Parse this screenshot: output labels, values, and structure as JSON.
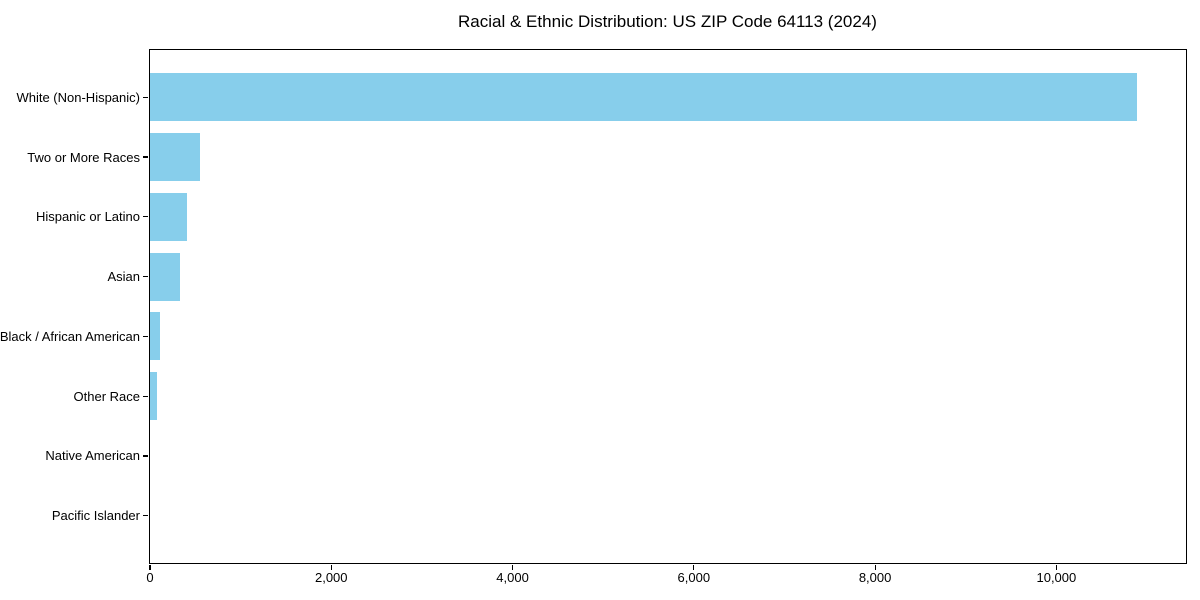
{
  "chart_data": {
    "type": "bar",
    "orientation": "horizontal",
    "title": "Racial & Ethnic Distribution: US ZIP Code 64113 (2024)",
    "categories": [
      "White (Non-Hispanic)",
      "Two or More Races",
      "Hispanic or Latino",
      "Asian",
      "Black / African American",
      "Other Race",
      "Native American",
      "Pacific Islander"
    ],
    "values": [
      10885,
      550,
      405,
      330,
      105,
      75,
      0,
      0
    ],
    "xlabel": "",
    "ylabel": "",
    "xlim": [
      0,
      11430
    ],
    "xticks": [
      0,
      2000,
      4000,
      6000,
      8000,
      10000
    ],
    "xtick_labels": [
      "0",
      "2,000",
      "4,000",
      "6,000",
      "8,000",
      "10,000"
    ],
    "grid": false,
    "legend": null,
    "bar_color": "#87CEEB",
    "axis_color": "#000000",
    "background_color": "#ffffff"
  }
}
